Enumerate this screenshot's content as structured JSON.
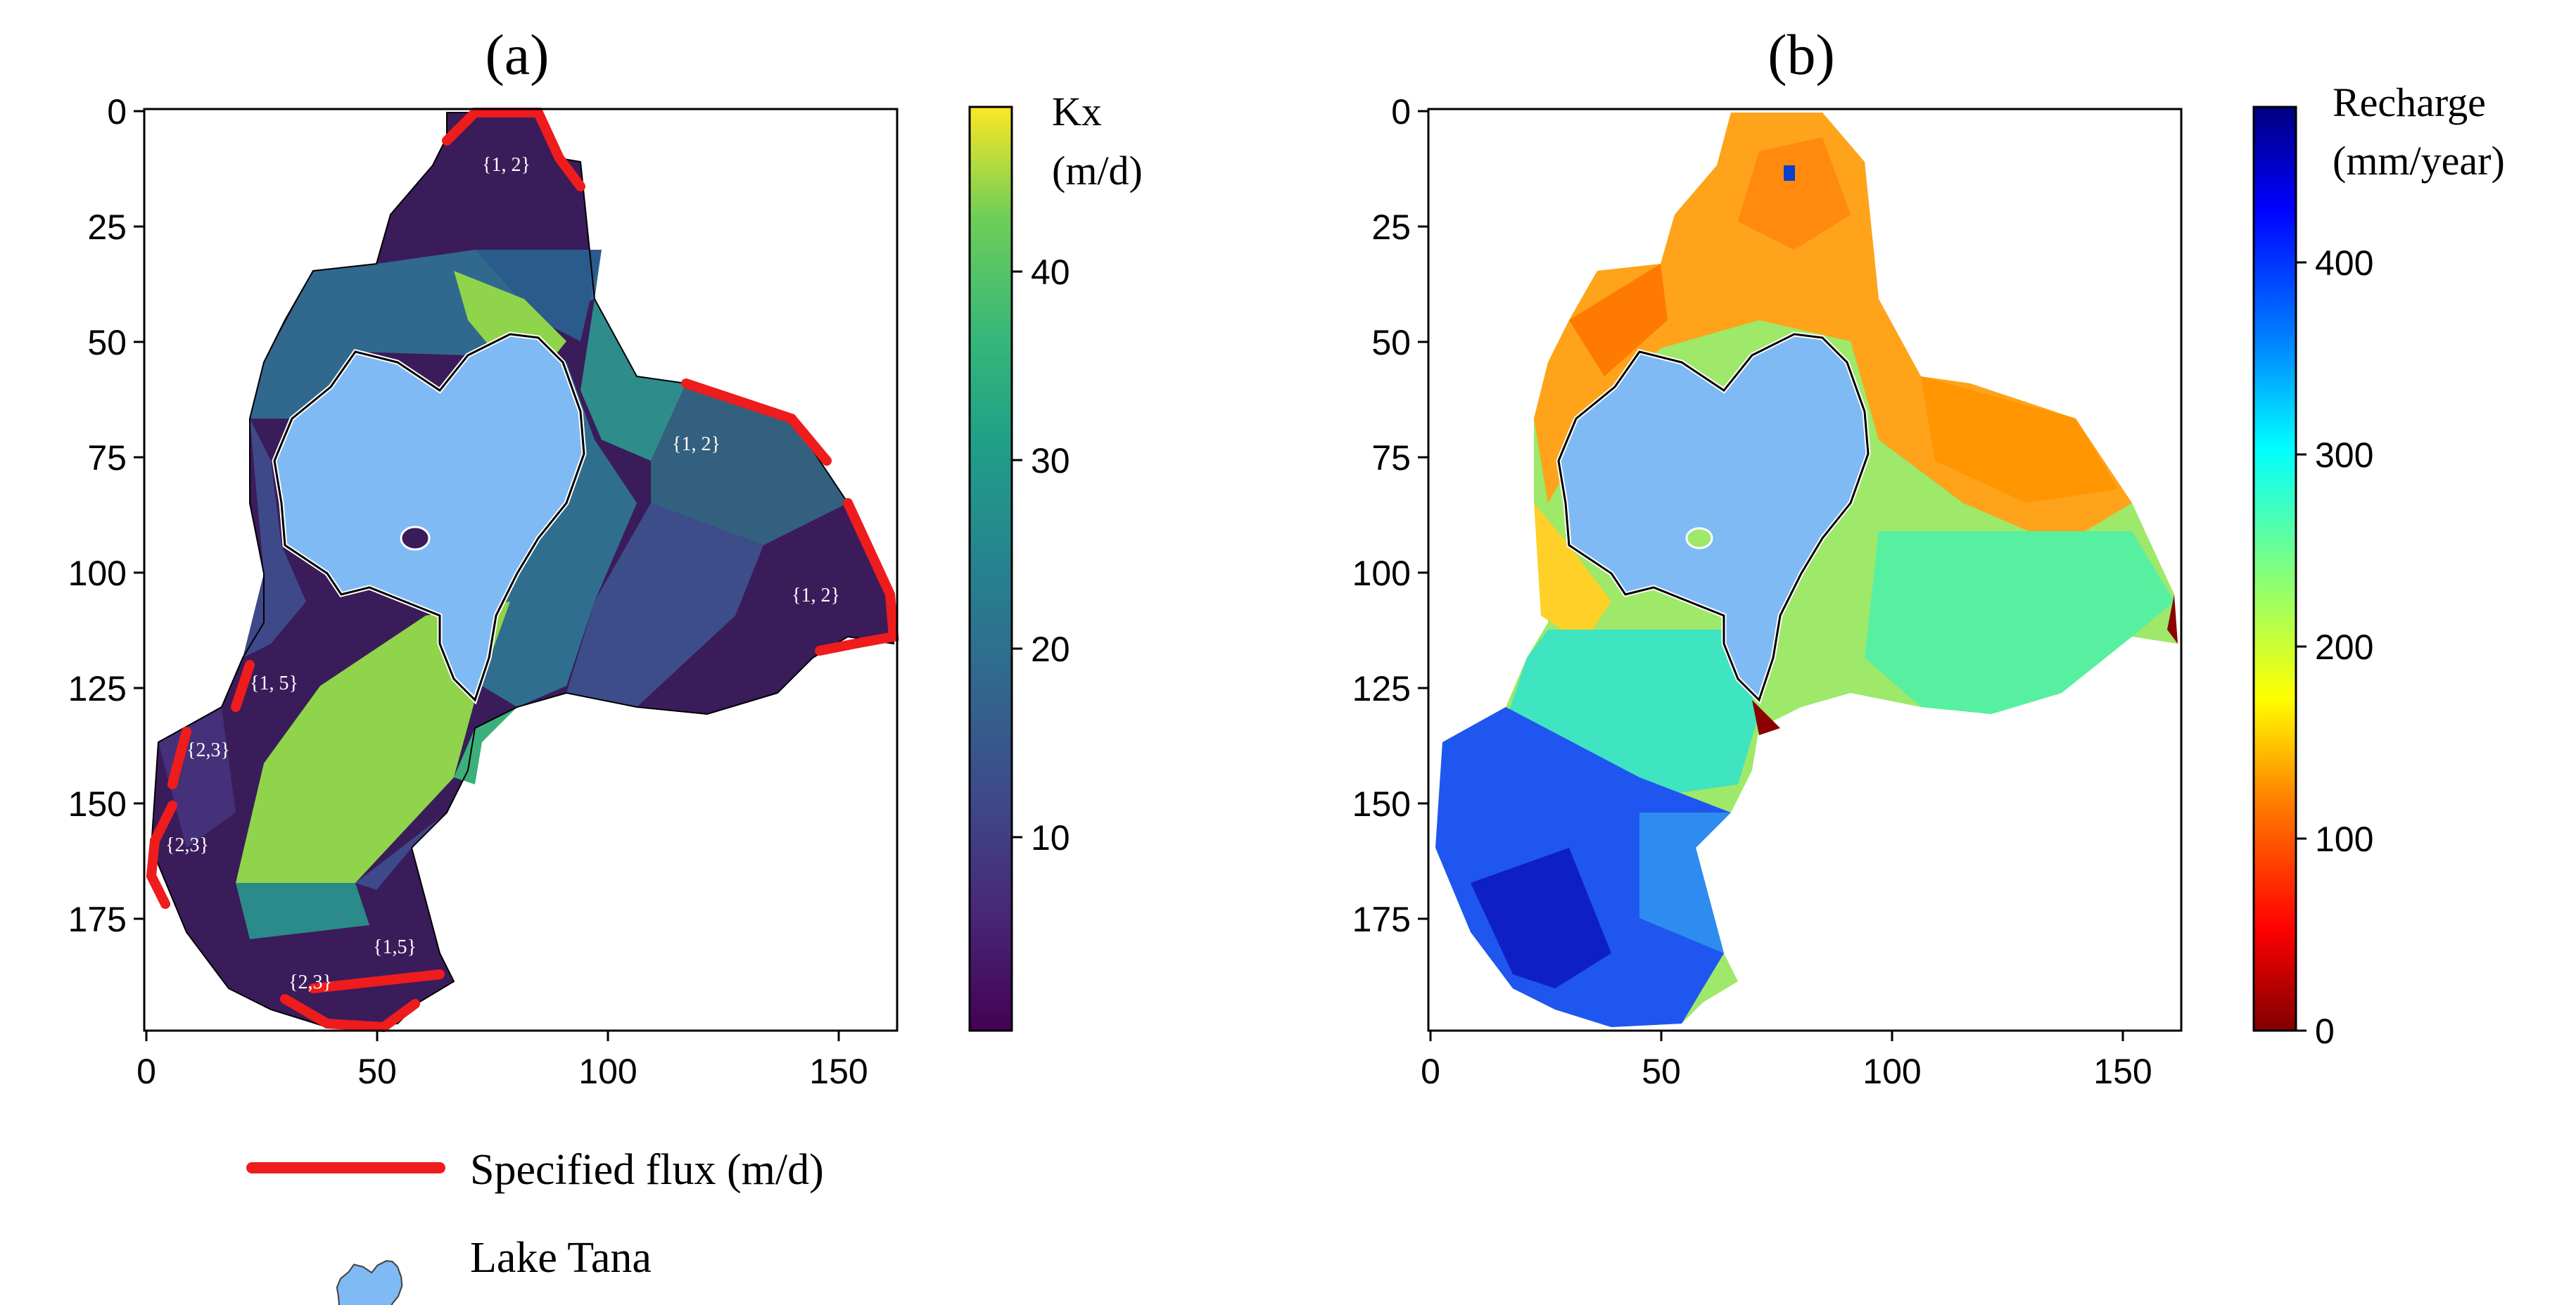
{
  "panels": [
    {
      "id": "a",
      "label": "(a)",
      "x_ticks": [
        "0",
        "50",
        "100",
        "150"
      ],
      "y_ticks": [
        "0",
        "25",
        "50",
        "75",
        "100",
        "125",
        "150",
        "175"
      ],
      "colorbar": {
        "title_line1": "Kx",
        "title_line2": "(m/d)",
        "ticks": [
          "10",
          "20",
          "30",
          "40"
        ],
        "colormap": "viridis",
        "range": [
          1,
          45
        ]
      },
      "boundary_labels": [
        "{1, 2}",
        "{1, 2}",
        "{1, 2}",
        "{1, 5}",
        "{2,3}",
        "{2,3}",
        "{1,5}",
        "{2,3}"
      ]
    },
    {
      "id": "b",
      "label": "(b)",
      "x_ticks": [
        "0",
        "50",
        "100",
        "150"
      ],
      "y_ticks": [
        "0",
        "25",
        "50",
        "75",
        "100",
        "125",
        "150",
        "175"
      ],
      "colorbar": {
        "title_line1": "Recharge",
        "title_line2": "(mm/year)",
        "ticks": [
          "0",
          "100",
          "200",
          "300",
          "400"
        ],
        "colormap": "jet_r",
        "range": [
          0,
          480
        ]
      }
    }
  ],
  "legend": {
    "flux_label": "Specified flux (m/d)",
    "lake_label": "Lake Tana"
  },
  "colors": {
    "flux_line": "#ee1c1c",
    "lake_fill": "#7fbaf5",
    "basin_dark": "#3b1c5a"
  }
}
